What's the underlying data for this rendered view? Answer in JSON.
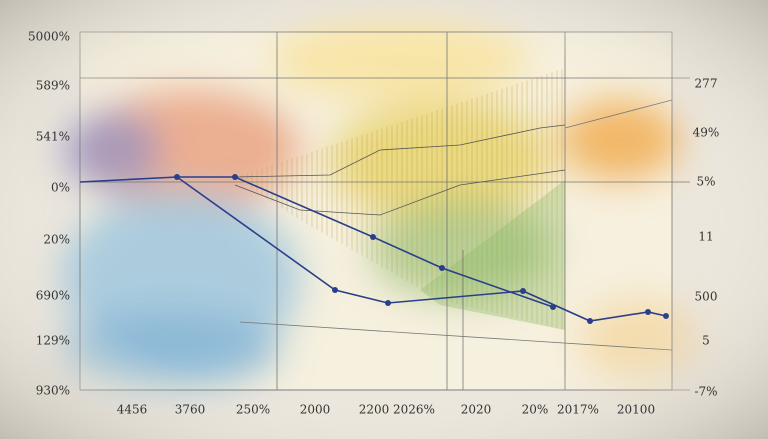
{
  "left_labels": [
    "5000%",
    "589%",
    "541%",
    "0%",
    "20%",
    "690%",
    "129%",
    "930%"
  ],
  "right_labels": [
    "277",
    "49%",
    "5%",
    "11",
    "500",
    "5",
    "-7%"
  ],
  "bottom_labels": [
    "4456",
    "3760",
    "250%",
    "2000",
    "2200",
    "2026%",
    "2020",
    "20%",
    "2017%",
    "20100"
  ]
}
